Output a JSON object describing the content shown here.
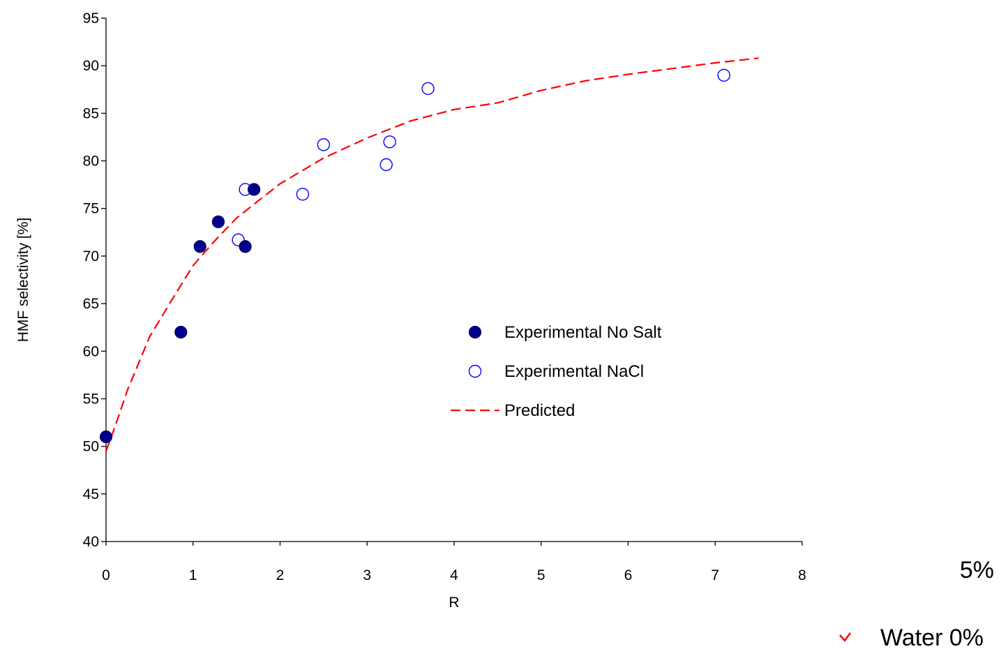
{
  "chart_data": {
    "type": "scatter",
    "title": "",
    "xlabel": "R",
    "ylabel": "HMF selectivity [%]",
    "xlim": [
      0,
      8
    ],
    "ylim": [
      40,
      95
    ],
    "x_ticks": [
      0,
      1,
      2,
      3,
      4,
      5,
      6,
      7,
      8
    ],
    "y_ticks": [
      40,
      45,
      50,
      55,
      60,
      65,
      70,
      75,
      80,
      85,
      90,
      95
    ],
    "grid": false,
    "legend_position": "center-right",
    "series": [
      {
        "name": "Experimental No Salt",
        "marker": "filled-circle",
        "color": "#00008B",
        "points": [
          {
            "x": 0.0,
            "y": 51.0
          },
          {
            "x": 0.86,
            "y": 62.0
          },
          {
            "x": 1.08,
            "y": 71.0
          },
          {
            "x": 1.29,
            "y": 73.6
          },
          {
            "x": 1.6,
            "y": 71.0
          },
          {
            "x": 1.7,
            "y": 77.0
          }
        ]
      },
      {
        "name": "Experimental NaCl",
        "marker": "open-circle",
        "color": "#0000FF",
        "points": [
          {
            "x": 1.52,
            "y": 71.7
          },
          {
            "x": 1.6,
            "y": 77.0
          },
          {
            "x": 2.26,
            "y": 76.5
          },
          {
            "x": 2.5,
            "y": 81.7
          },
          {
            "x": 3.22,
            "y": 79.6
          },
          {
            "x": 3.26,
            "y": 82.0
          },
          {
            "x": 3.7,
            "y": 87.6
          },
          {
            "x": 7.1,
            "y": 89.0
          }
        ]
      },
      {
        "name": "Predicted",
        "marker": "dashed-line",
        "color": "#FF0000",
        "points": [
          {
            "x": 0.0,
            "y": 49.5
          },
          {
            "x": 0.1,
            "y": 52.0
          },
          {
            "x": 0.25,
            "y": 56.0
          },
          {
            "x": 0.5,
            "y": 61.5
          },
          {
            "x": 0.75,
            "y": 65.3
          },
          {
            "x": 1.0,
            "y": 69.0
          },
          {
            "x": 1.25,
            "y": 71.6
          },
          {
            "x": 1.5,
            "y": 74.0
          },
          {
            "x": 1.75,
            "y": 75.8
          },
          {
            "x": 2.0,
            "y": 77.6
          },
          {
            "x": 2.5,
            "y": 80.3
          },
          {
            "x": 3.0,
            "y": 82.4
          },
          {
            "x": 3.5,
            "y": 84.2
          },
          {
            "x": 4.0,
            "y": 85.4
          },
          {
            "x": 4.5,
            "y": 86.1
          },
          {
            "x": 5.0,
            "y": 87.4
          },
          {
            "x": 5.5,
            "y": 88.4
          },
          {
            "x": 6.0,
            "y": 89.1
          },
          {
            "x": 6.5,
            "y": 89.7
          },
          {
            "x": 7.0,
            "y": 90.3
          },
          {
            "x": 7.5,
            "y": 90.8
          }
        ]
      }
    ]
  },
  "overlay_text": {
    "top_fragment": "5%",
    "bottom_fragment": "Water 0%"
  }
}
